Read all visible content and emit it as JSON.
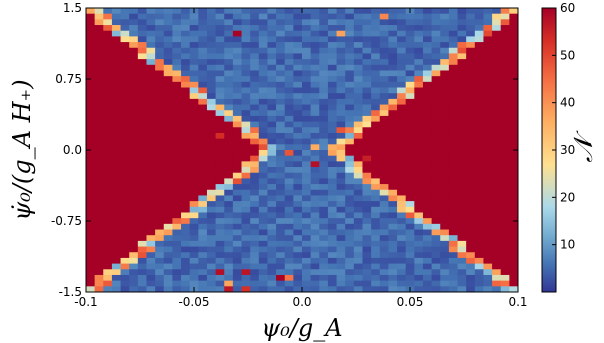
{
  "chart_data": {
    "type": "heatmap",
    "title": "",
    "xlabel": "ψ₀/g_A",
    "ylabel": "ψ̇₀/(g_A H₊)",
    "colorbar_label": "𝒩",
    "xlim": [
      -0.1,
      0.1
    ],
    "ylim": [
      -1.5,
      1.5
    ],
    "x_ticks": [
      "-0.1",
      "-0.05",
      "0.0",
      "0.05",
      "0.1"
    ],
    "y_ticks": [
      "1.5",
      "0.75",
      "0.0",
      "-0.75",
      "-1.5"
    ],
    "colorbar_range": [
      0,
      60
    ],
    "colorbar_ticks": [
      "60",
      "50",
      "40",
      "30",
      "20",
      "10"
    ],
    "colormap": "RdYlBu_r",
    "grid": "off",
    "description_of_values": {
      "outer_wedges_left_right": 60,
      "background_center": 3,
      "boundary_band": "10-50 (gradient along diagonal edges)"
    }
  }
}
